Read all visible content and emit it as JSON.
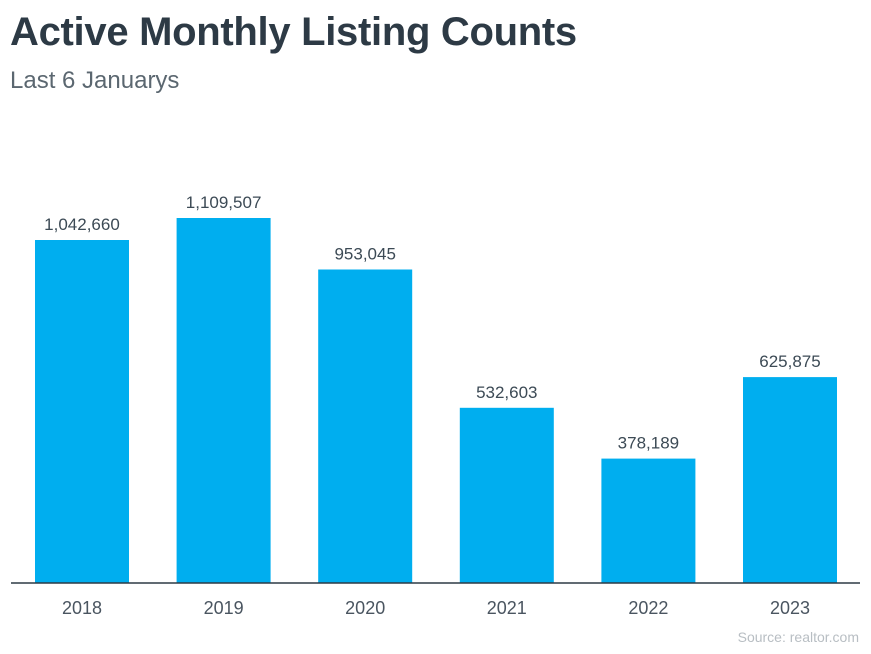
{
  "chart_data": {
    "type": "bar",
    "title": "Active Monthly Listing Counts",
    "subtitle": "Last 6 Januarys",
    "categories": [
      "2018",
      "2019",
      "2020",
      "2021",
      "2022",
      "2023"
    ],
    "values": [
      1042660,
      1109507,
      953045,
      532603,
      378189,
      625875
    ],
    "data_labels": [
      "1,042,660",
      "1,109,507",
      "953,045",
      "532,603",
      "378,189",
      "625,875"
    ],
    "xlabel": "",
    "ylabel": "",
    "ylim": [
      0,
      1109507
    ],
    "grid": false,
    "legend": "none",
    "colors": {
      "bar": "#00aeef",
      "axis": "#2d3a45",
      "label": "#3c4a55",
      "tick": "#4a5560"
    }
  },
  "source": "Source: realtor.com"
}
